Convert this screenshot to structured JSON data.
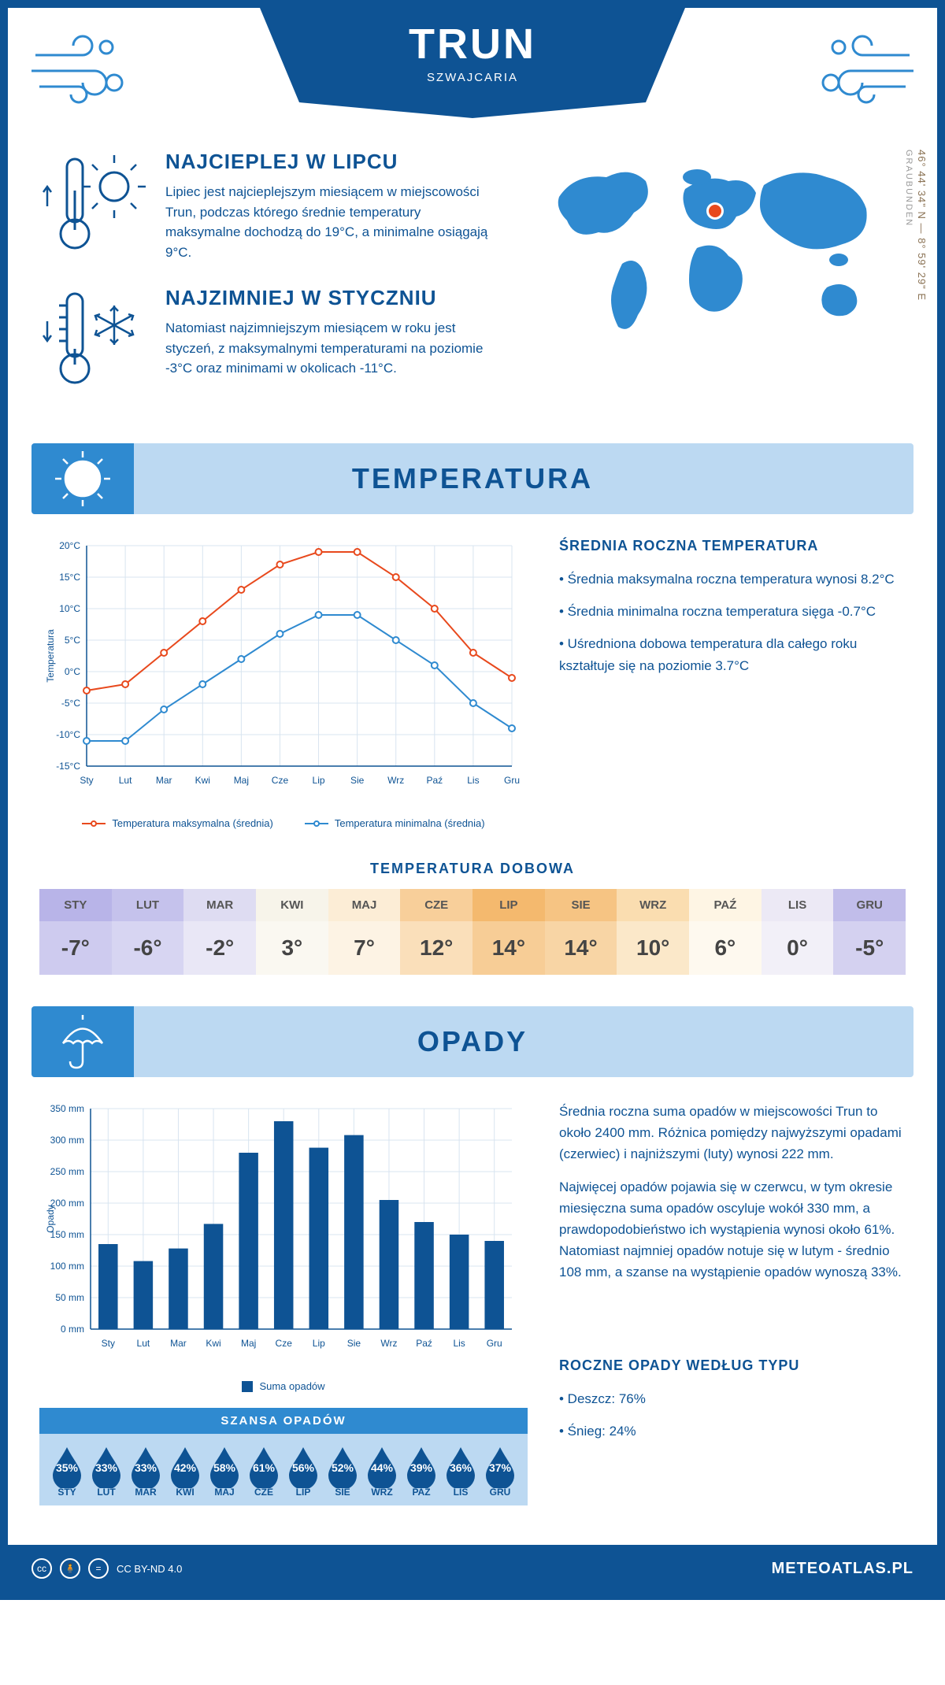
{
  "header": {
    "title": "TRUN",
    "subtitle": "SZWAJCARIA",
    "banner_color": "#0e5394",
    "deco_color": "#2f8ad0"
  },
  "intro": {
    "hot": {
      "title": "NAJCIEPLEJ W LIPCU",
      "text": "Lipiec jest najcieplejszym miesiącem w miejscowości Trun, podczas którego średnie temperatury maksymalne dochodzą do 19°C, a minimalne osiągają 9°C."
    },
    "cold": {
      "title": "NAJZIMNIEJ W STYCZNIU",
      "text": "Natomiast najzimniejszym miesiącem w roku jest styczeń, z maksymalnymi temperaturami na poziomie -3°C oraz minimami w okolicach -11°C."
    },
    "coords": "46° 44' 34\" N — 8° 59' 29\" E",
    "region": "GRAUBUNDEN",
    "map_color": "#2f8ad0",
    "marker_color": "#e8491d"
  },
  "temperature": {
    "section_title": "TEMPERATURA",
    "stats_title": "ŚREDNIA ROCZNA TEMPERATURA",
    "stats": [
      "• Średnia maksymalna roczna temperatura wynosi 8.2°C",
      "• Średnia minimalna roczna temperatura sięga -0.7°C",
      "• Uśredniona dobowa temperatura dla całego roku kształtuje się na poziomie 3.7°C"
    ],
    "chart": {
      "months": [
        "Sty",
        "Lut",
        "Mar",
        "Kwi",
        "Maj",
        "Cze",
        "Lip",
        "Sie",
        "Wrz",
        "Paź",
        "Lis",
        "Gru"
      ],
      "max": [
        -3,
        -2,
        3,
        8,
        13,
        17,
        19,
        19,
        15,
        10,
        3,
        -1
      ],
      "min": [
        -11,
        -11,
        -6,
        -2,
        2,
        6,
        9,
        9,
        5,
        1,
        -5,
        -9
      ],
      "max_color": "#e8491d",
      "min_color": "#2f8ad0",
      "ylim": [
        -15,
        20
      ],
      "ytick_step": 5,
      "ylabel": "Temperatura",
      "grid_color": "#d8e4f0",
      "legend_max": "Temperatura maksymalna (średnia)",
      "legend_min": "Temperatura minimalna (średnia)"
    },
    "daily_title": "TEMPERATURA DOBOWA",
    "daily_months": [
      "STY",
      "LUT",
      "MAR",
      "KWI",
      "MAJ",
      "CZE",
      "LIP",
      "SIE",
      "WRZ",
      "PAŹ",
      "LIS",
      "GRU"
    ],
    "daily_values": [
      "-7°",
      "-6°",
      "-2°",
      "3°",
      "7°",
      "12°",
      "14°",
      "14°",
      "10°",
      "6°",
      "0°",
      "-5°"
    ],
    "daily_bg_top": [
      "#b8b4e8",
      "#c5c2ec",
      "#dedcf2",
      "#f7f4ea",
      "#fcedd6",
      "#f8cf9a",
      "#f4b96e",
      "#f6c483",
      "#faddb0",
      "#fef5e4",
      "#ece9f5",
      "#c1bdea"
    ],
    "daily_bg_bot": [
      "#cecbef",
      "#d7d5f2",
      "#e9e7f6",
      "#faf8f1",
      "#fdf3e4",
      "#fadfba",
      "#f7cd96",
      "#f8d5a5",
      "#fbe8c9",
      "#fef9ef",
      "#f2f0f8",
      "#d4d1f0"
    ]
  },
  "precipitation": {
    "section_title": "OPADY",
    "chart": {
      "months": [
        "Sty",
        "Lut",
        "Mar",
        "Kwi",
        "Maj",
        "Cze",
        "Lip",
        "Sie",
        "Wrz",
        "Paź",
        "Lis",
        "Gru"
      ],
      "values": [
        135,
        108,
        128,
        167,
        280,
        330,
        288,
        308,
        205,
        170,
        150,
        140
      ],
      "ylim": [
        0,
        350
      ],
      "ytick_step": 50,
      "ylabel": "Opady",
      "bar_color": "#0e5394",
      "grid_color": "#d8e4f0",
      "legend": "Suma opadów"
    },
    "text1": "Średnia roczna suma opadów w miejscowości Trun to około 2400 mm. Różnica pomiędzy najwyższymi opadami (czerwiec) i najniższymi (luty) wynosi 222 mm.",
    "text2": "Najwięcej opadów pojawia się w czerwcu, w tym okresie miesięczna suma opadów oscyluje wokół 330 mm, a prawdopodobieństwo ich wystąpienia wynosi około 61%. Natomiast najmniej opadów notuje się w lutym - średnio 108 mm, a szanse na wystąpienie opadów wynoszą 33%.",
    "chance_title": "SZANSA OPADÓW",
    "chance_months": [
      "STY",
      "LUT",
      "MAR",
      "KWI",
      "MAJ",
      "CZE",
      "LIP",
      "SIE",
      "WRZ",
      "PAŹ",
      "LIS",
      "GRU"
    ],
    "chance_values": [
      "35%",
      "33%",
      "33%",
      "42%",
      "58%",
      "61%",
      "56%",
      "52%",
      "44%",
      "39%",
      "36%",
      "37%"
    ],
    "drop_color": "#0e5394",
    "type_title": "ROCZNE OPADY WEDŁUG TYPU",
    "type_rain": "• Deszcz: 76%",
    "type_snow": "• Śnieg: 24%"
  },
  "footer": {
    "license": "CC BY-ND 4.0",
    "site": "METEOATLAS.PL",
    "bg": "#0e5394"
  }
}
